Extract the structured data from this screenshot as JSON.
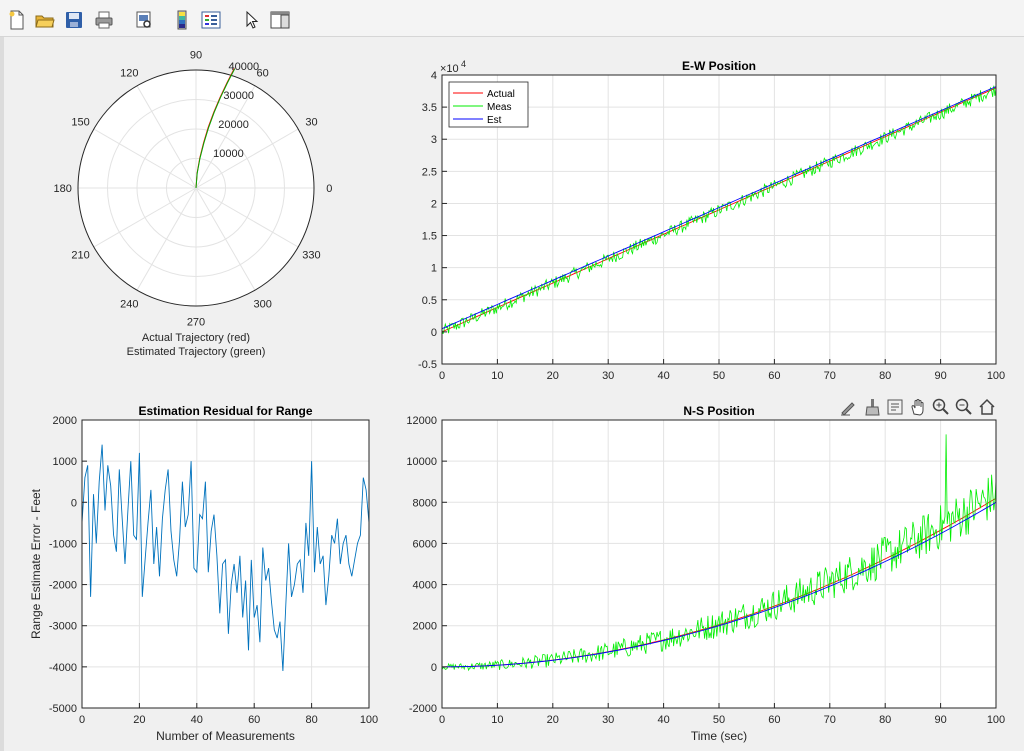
{
  "toolbar": {
    "items": [
      "new-figure-icon",
      "open-file-icon",
      "save-icon",
      "print-icon",
      "print-preview-icon",
      "colorbar-icon",
      "legend-icon",
      "pointer-icon",
      "property-inspector-icon"
    ]
  },
  "axes_toolbar": {
    "items": [
      "edit-plot-icon",
      "brush-icon",
      "data-tips-icon",
      "pan-icon",
      "zoom-in-icon",
      "zoom-out-icon",
      "home-icon"
    ]
  },
  "colors": {
    "actual": "#ff0000",
    "meas": "#00ee00",
    "est": "#0000ff",
    "residual": "#0072bd",
    "grid": "#e3e3e3"
  },
  "chart_data": [
    {
      "type": "polar",
      "title": "",
      "xlabel_lines": [
        "Actual Trajectory (red)",
        "Estimated Trajectory (green)"
      ],
      "angle_ticks": [
        "0",
        "30",
        "60",
        "90",
        "120",
        "150",
        "180",
        "210",
        "240",
        "270",
        "300",
        "330"
      ],
      "angle_tick_values": [
        0,
        30,
        60,
        90,
        120,
        150,
        180,
        210,
        240,
        270,
        300,
        330
      ],
      "r_ticks": [
        "10000",
        "20000",
        "30000",
        "40000"
      ],
      "r_tick_values": [
        10000,
        20000,
        30000,
        40000
      ],
      "rlim": [
        0,
        40000
      ],
      "series": [
        {
          "name": "Actual",
          "theta_deg": [
            90.0,
            85.9,
            82.9,
            80.5,
            78.6,
            76.8,
            75.1,
            73.6,
            72.2
          ],
          "r": [
            0,
            5100,
            10300,
            15600,
            21000,
            26400,
            31800,
            37200,
            42600
          ]
        },
        {
          "name": "Estimated",
          "theta_deg": [
            90.0,
            85.3,
            82.4,
            80.1,
            78.2,
            76.5,
            74.9,
            73.4,
            72.0
          ],
          "r": [
            0,
            5000,
            10200,
            15500,
            20900,
            26300,
            31700,
            37100,
            42500
          ]
        }
      ]
    },
    {
      "type": "line",
      "title": "E-W Position",
      "xlabel": "",
      "ylabel": "",
      "y_exponent_label": "×10",
      "y_exponent": "4",
      "xlim": [
        0,
        100
      ],
      "ylim": [
        -0.5,
        4
      ],
      "x_ticks": [
        "0",
        "10",
        "20",
        "30",
        "40",
        "50",
        "60",
        "70",
        "80",
        "90",
        "100"
      ],
      "x_tick_values": [
        0,
        10,
        20,
        30,
        40,
        50,
        60,
        70,
        80,
        90,
        100
      ],
      "y_ticks": [
        "-0.5",
        "0",
        "0.5",
        "1",
        "1.5",
        "2",
        "2.5",
        "3",
        "3.5",
        "4"
      ],
      "y_tick_values": [
        -0.5,
        0,
        0.5,
        1,
        1.5,
        2,
        2.5,
        3,
        3.5,
        4
      ],
      "legend": {
        "position": "top-left",
        "entries": [
          "Actual",
          "Meas",
          "Est"
        ]
      },
      "grid": true,
      "series": [
        {
          "name": "Actual",
          "model": "linear",
          "x_range": [
            0,
            100
          ],
          "y_start": 0,
          "y_end": 3.8
        },
        {
          "name": "Meas",
          "model": "noisy-linear",
          "x_range": [
            0,
            100
          ],
          "y_start": 0,
          "y_end": 3.78,
          "noise_amplitude": 0.1
        },
        {
          "name": "Est",
          "model": "linear",
          "x_range": [
            0,
            100
          ],
          "y_start": 0.05,
          "y_end": 3.82
        }
      ]
    },
    {
      "type": "line",
      "title": "Estimation Residual for Range",
      "xlabel": "Number of Measurements",
      "ylabel": "Range Estimate Error - Feet",
      "xlim": [
        0,
        100
      ],
      "ylim": [
        -5000,
        2000
      ],
      "x_ticks": [
        "0",
        "20",
        "40",
        "60",
        "80",
        "100"
      ],
      "x_tick_values": [
        0,
        20,
        40,
        60,
        80,
        100
      ],
      "y_ticks": [
        "-5000",
        "-4000",
        "-3000",
        "-2000",
        "-1000",
        "0",
        "1000",
        "2000"
      ],
      "y_tick_values": [
        -5000,
        -4000,
        -3000,
        -2000,
        -1000,
        0,
        1000,
        2000
      ],
      "grid": true,
      "series": [
        {
          "name": "",
          "x": [
            0,
            1,
            2,
            3,
            4,
            5,
            6,
            7,
            8,
            9,
            10,
            11,
            12,
            13,
            14,
            15,
            16,
            17,
            18,
            19,
            20,
            21,
            22,
            23,
            24,
            25,
            26,
            27,
            28,
            29,
            30,
            31,
            32,
            33,
            34,
            35,
            36,
            37,
            38,
            39,
            40,
            41,
            42,
            43,
            44,
            45,
            46,
            47,
            48,
            49,
            50,
            51,
            52,
            53,
            54,
            55,
            56,
            57,
            58,
            59,
            60,
            61,
            62,
            63,
            64,
            65,
            66,
            67,
            68,
            69,
            70,
            71,
            72,
            73,
            74,
            75,
            76,
            77,
            78,
            79,
            80,
            81,
            82,
            83,
            84,
            85,
            86,
            87,
            88,
            89,
            90,
            91,
            92,
            93,
            94,
            95,
            96,
            97,
            98,
            99,
            100
          ],
          "y": [
            -500,
            600,
            900,
            -2300,
            200,
            -1000,
            500,
            1400,
            -200,
            900,
            400,
            -800,
            -1200,
            800,
            -400,
            -1500,
            -200,
            1000,
            -800,
            -900,
            1200,
            -2300,
            -1400,
            -500,
            300,
            -1500,
            -600,
            -1800,
            -400,
            300,
            800,
            -700,
            -1400,
            -1800,
            -900,
            500,
            -600,
            -300,
            1000,
            -1600,
            -1700,
            -300,
            -400,
            500,
            -1700,
            -700,
            -300,
            -1300,
            -2700,
            -1500,
            -1400,
            -3200,
            -2000,
            -1500,
            -2200,
            -1300,
            -2800,
            -1900,
            -3600,
            -1400,
            -2800,
            -2500,
            -3400,
            -1100,
            -1900,
            -1600,
            -2400,
            -3100,
            -3300,
            -2900,
            -4100,
            -2500,
            -1000,
            -2300,
            -2000,
            -1500,
            -1400,
            -2200,
            -500,
            -1300,
            1000,
            -1700,
            -600,
            -1500,
            -1300,
            -2500,
            -1800,
            -800,
            -1000,
            -400,
            -1500,
            -1000,
            -800,
            -1500,
            -1800,
            -1400,
            -1000,
            -800,
            600,
            300,
            -500
          ]
        }
      ]
    },
    {
      "type": "line",
      "title": "N-S Position",
      "xlabel": "Time (sec)",
      "ylabel": "",
      "xlim": [
        0,
        100
      ],
      "ylim": [
        -2000,
        12000
      ],
      "x_ticks": [
        "0",
        "10",
        "20",
        "30",
        "40",
        "50",
        "60",
        "70",
        "80",
        "90",
        "100"
      ],
      "x_tick_values": [
        0,
        10,
        20,
        30,
        40,
        50,
        60,
        70,
        80,
        90,
        100
      ],
      "y_ticks": [
        "-2000",
        "0",
        "2000",
        "4000",
        "6000",
        "8000",
        "10000",
        "12000"
      ],
      "y_tick_values": [
        -2000,
        0,
        2000,
        4000,
        6000,
        8000,
        10000,
        12000
      ],
      "grid": true,
      "series": [
        {
          "name": "Actual",
          "model": "quadratic",
          "x_range": [
            0,
            100
          ],
          "y_start": 0,
          "y_end": 8200
        },
        {
          "name": "Meas",
          "model": "noisy-quadratic",
          "x_range": [
            0,
            100
          ],
          "y_start": 0,
          "y_end": 8400,
          "noise_amplitude": 900,
          "peak": {
            "x": 91,
            "y": 11300
          }
        },
        {
          "name": "Est",
          "model": "quadratic",
          "x_range": [
            0,
            100
          ],
          "y_start": 0,
          "y_end": 8000
        }
      ]
    }
  ]
}
